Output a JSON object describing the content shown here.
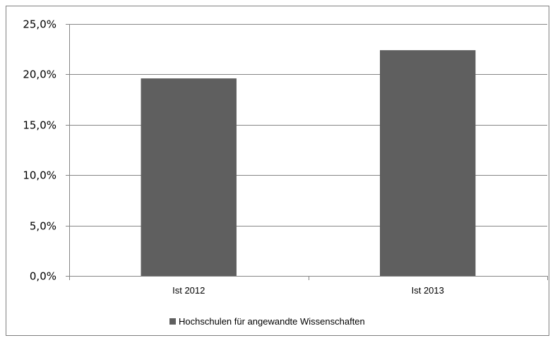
{
  "chart_data": {
    "type": "bar",
    "categories": [
      "Ist 2012",
      "Ist 2013"
    ],
    "series": [
      {
        "name": "Hochschulen für angewandte Wissenschaften",
        "values": [
          19.6,
          22.4
        ],
        "color": "#5f5f5f"
      }
    ],
    "ylim": [
      0,
      25
    ],
    "yticks": [
      0,
      5,
      10,
      15,
      20,
      25
    ],
    "ytick_labels": [
      "0,0%",
      "5,0%",
      "10,0%",
      "15,0%",
      "20,0%",
      "25,0%"
    ],
    "grid": true,
    "legend_position": "bottom",
    "title": "",
    "xlabel": "",
    "ylabel": ""
  }
}
